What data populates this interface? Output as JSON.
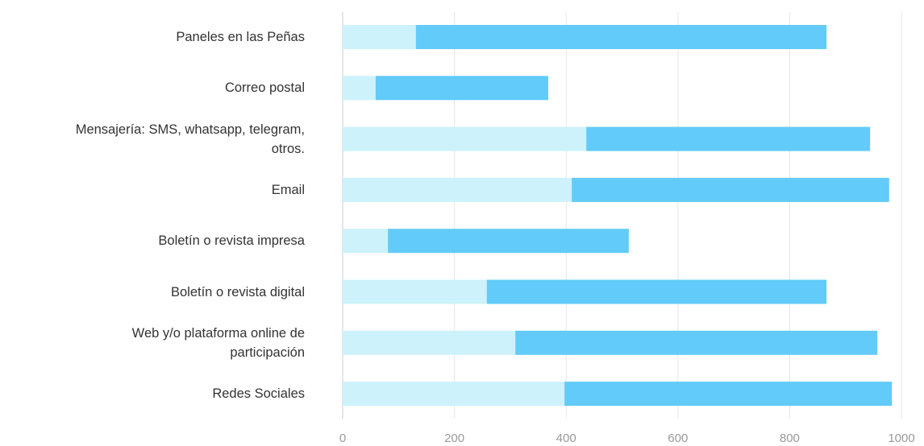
{
  "chart_data": {
    "type": "bar",
    "orientation": "horizontal",
    "stacked": true,
    "categories": [
      "Paneles en las Peñas",
      "Correo postal",
      "Mensajería: SMS, whatsapp, telegram, otros.",
      "Email",
      "Boletín o revista impresa",
      "Boletín o revista digital",
      "Web y/o plataforma online de participación",
      "Redes Sociales"
    ],
    "series": [
      {
        "color": "#cdf2fb",
        "values": [
          131,
          59,
          436,
          410,
          81,
          258,
          309,
          397
        ]
      },
      {
        "color": "#62cbf9",
        "values": [
          735,
          309,
          508,
          568,
          431,
          608,
          648,
          586
        ]
      }
    ],
    "xlim": [
      0,
      1000
    ],
    "xticks": [
      0,
      200,
      400,
      600,
      800,
      1000
    ],
    "grid": true
  }
}
